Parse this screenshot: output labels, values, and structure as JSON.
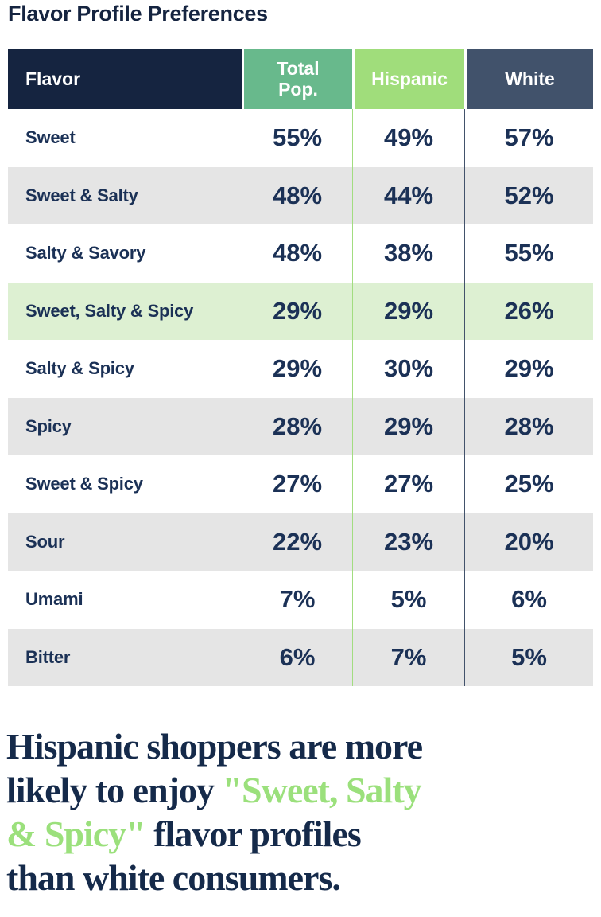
{
  "page_title": "Flavor Profile Preferences",
  "colors": {
    "title_navy": "#152440",
    "header_flavor_bg": "#152440",
    "header_total_bg": "#68b98c",
    "header_hispanic_bg": "#a0dd7b",
    "header_white_bg": "#41526b",
    "row_alt_gray": "#e5e5e5",
    "row_highlight_green": "#ddf0d2",
    "cell_text_navy": "#1b3156",
    "divider_green_light": "#b5e3a6",
    "divider_green": "#a2dd80",
    "divider_navy": "#42526b",
    "headline_navy": "#152a4a",
    "headline_green": "#9be07c"
  },
  "chart_data": {
    "type": "table",
    "title": "Flavor Profile Preferences",
    "columns": [
      "Flavor",
      "Total Pop.",
      "Hispanic",
      "White"
    ],
    "rows": [
      {
        "flavor": "Sweet",
        "total_pop": "55%",
        "hispanic": "49%",
        "white": "57%",
        "highlighted": false
      },
      {
        "flavor": "Sweet & Salty",
        "total_pop": "48%",
        "hispanic": "44%",
        "white": "52%",
        "highlighted": false
      },
      {
        "flavor": "Salty & Savory",
        "total_pop": "48%",
        "hispanic": "38%",
        "white": "55%",
        "highlighted": false
      },
      {
        "flavor": "Sweet, Salty & Spicy",
        "total_pop": "29%",
        "hispanic": "29%",
        "white": "26%",
        "highlighted": true
      },
      {
        "flavor": "Salty & Spicy",
        "total_pop": "29%",
        "hispanic": "30%",
        "white": "29%",
        "highlighted": false
      },
      {
        "flavor": "Spicy",
        "total_pop": "28%",
        "hispanic": "29%",
        "white": "28%",
        "highlighted": false
      },
      {
        "flavor": "Sweet & Spicy",
        "total_pop": "27%",
        "hispanic": "27%",
        "white": "25%",
        "highlighted": false
      },
      {
        "flavor": "Sour",
        "total_pop": "22%",
        "hispanic": "23%",
        "white": "20%",
        "highlighted": false
      },
      {
        "flavor": "Umami",
        "total_pop": "7%",
        "hispanic": "5%",
        "white": "6%",
        "highlighted": false
      },
      {
        "flavor": "Bitter",
        "total_pop": "6%",
        "hispanic": "7%",
        "white": "5%",
        "highlighted": false
      }
    ]
  },
  "table": {
    "columns": [
      {
        "label": "Flavor"
      },
      {
        "label": "Total Pop."
      },
      {
        "label": "Hispanic"
      },
      {
        "label": "White"
      }
    ],
    "rows": [
      {
        "label": "Sweet",
        "total": "55%",
        "hispanic": "49%",
        "white": "57%"
      },
      {
        "label": "Sweet & Salty",
        "total": "48%",
        "hispanic": "44%",
        "white": "52%"
      },
      {
        "label": "Salty & Savory",
        "total": "48%",
        "hispanic": "38%",
        "white": "55%"
      },
      {
        "label": "Sweet, Salty & Spicy",
        "total": "29%",
        "hispanic": "29%",
        "white": "26%"
      },
      {
        "label": "Salty & Spicy",
        "total": "29%",
        "hispanic": "30%",
        "white": "29%"
      },
      {
        "label": "Spicy",
        "total": "28%",
        "hispanic": "29%",
        "white": "28%"
      },
      {
        "label": "Sweet & Spicy",
        "total": "27%",
        "hispanic": "27%",
        "white": "25%"
      },
      {
        "label": "Sour",
        "total": "22%",
        "hispanic": "23%",
        "white": "20%"
      },
      {
        "label": "Umami",
        "total": "7%",
        "hispanic": "5%",
        "white": "6%"
      },
      {
        "label": "Bitter",
        "total": "6%",
        "hispanic": "7%",
        "white": "5%"
      }
    ]
  },
  "headline": {
    "lines": [
      {
        "navy1": "Hispanic shoppers are more"
      },
      {
        "navy1": "likely to enjoy ",
        "green": "\"Sweet, Salty"
      },
      {
        "green": "& Spicy\"",
        "navy1": " flavor profiles"
      },
      {
        "navy1": "than white consumers."
      }
    ]
  }
}
